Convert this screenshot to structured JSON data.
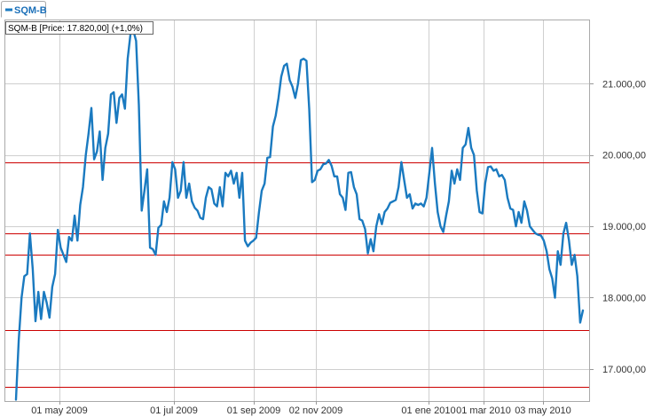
{
  "legend_tab": {
    "label": "SQM-B"
  },
  "info_box": {
    "text": "SQM-B [Price: 17.820,00] (+1,0%)"
  },
  "colors": {
    "series": "#1a7ac0",
    "grid": "#cfcfcf",
    "hline": "#cc0000",
    "frame": "#aaaaaa",
    "tab_text": "#1a6fb8"
  },
  "chart_data": {
    "type": "line",
    "title": "",
    "xlabel": "",
    "ylabel": "",
    "ylim": [
      16550,
      21900
    ],
    "x_ticks": [
      "01 may 2009",
      "01 jul 2009",
      "01 sep 2009",
      "02 nov 2009",
      "01 ene 2010",
      "01 mar 2010",
      "03 may 2010"
    ],
    "y_ticks": [
      17000,
      18000,
      19000,
      20000,
      21000
    ],
    "y_tick_labels": [
      "17.000,00",
      "18.000,00",
      "19.000,00",
      "20.000,00",
      "21.000,00"
    ],
    "horizontal_lines": [
      19900,
      18900,
      18600,
      17550,
      16750
    ],
    "grid": true,
    "legend": "top-left",
    "series": [
      {
        "name": "SQM-B",
        "values": [
          16570,
          17400,
          18000,
          18300,
          18330,
          18900,
          18400,
          17670,
          18080,
          17700,
          18080,
          17930,
          17720,
          18150,
          18330,
          18950,
          18700,
          18600,
          18500,
          18850,
          18800,
          19150,
          18800,
          19300,
          19550,
          20000,
          20300,
          20660,
          19940,
          20050,
          20330,
          19650,
          20100,
          20300,
          20850,
          20880,
          20450,
          20800,
          20850,
          20650,
          21350,
          21700,
          21750,
          21600,
          20700,
          19220,
          19500,
          19800,
          18700,
          18680,
          18600,
          18980,
          19020,
          19350,
          19200,
          19400,
          19900,
          19800,
          19400,
          19500,
          19900,
          19400,
          19600,
          19350,
          19260,
          19220,
          19120,
          19100,
          19400,
          19550,
          19520,
          19320,
          19280,
          19550,
          19280,
          19750,
          19700,
          19780,
          19600,
          19750,
          19400,
          19750,
          18800,
          18720,
          18770,
          18800,
          18840,
          19200,
          19500,
          19600,
          19960,
          19970,
          20400,
          20550,
          20800,
          21100,
          21250,
          21280,
          21050,
          20960,
          20800,
          21000,
          21330,
          21350,
          21320,
          20650,
          19620,
          19650,
          19780,
          19800,
          19870,
          19880,
          19930,
          19850,
          19700,
          19700,
          19450,
          19400,
          19230,
          19750,
          19760,
          19550,
          19450,
          19100,
          19080,
          18960,
          18620,
          18820,
          18650,
          19000,
          19170,
          19030,
          19200,
          19250,
          19330,
          19350,
          19370,
          19550,
          19900,
          19650,
          19400,
          19450,
          19250,
          19320,
          19300,
          19320,
          19280,
          19400,
          19750,
          20100,
          19600,
          19200,
          19000,
          18920,
          19150,
          19350,
          19780,
          19600,
          19800,
          19650,
          20100,
          20150,
          20380,
          20100,
          20000,
          19500,
          19200,
          19180,
          19600,
          19830,
          19840,
          19780,
          19800,
          19700,
          19720,
          19650,
          19400,
          19250,
          19230,
          19000,
          19200,
          19050,
          19350,
          19220,
          19000,
          18950,
          18900,
          18880,
          18870,
          18800,
          18650,
          18400,
          18270,
          18000,
          18650,
          18460,
          18900,
          19050,
          18800,
          18460,
          18600,
          18300,
          17650,
          17820
        ]
      }
    ]
  }
}
